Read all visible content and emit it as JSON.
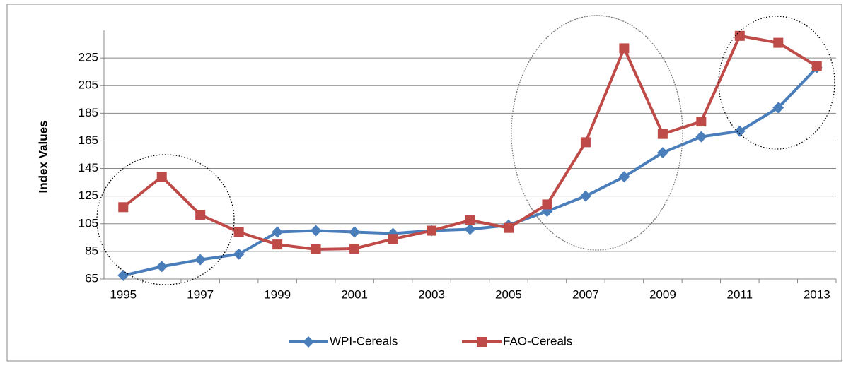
{
  "chart_data": {
    "type": "line",
    "y_label": "Index Values",
    "x": [
      1995,
      1996,
      1997,
      1998,
      1999,
      2000,
      2001,
      2002,
      2003,
      2004,
      2005,
      2006,
      2007,
      2008,
      2009,
      2010,
      2011,
      2012,
      2013
    ],
    "xlim": [
      1994.5,
      2013.5
    ],
    "xticks": [
      1995,
      1997,
      1999,
      2001,
      2003,
      2005,
      2007,
      2009,
      2011,
      2013
    ],
    "ylim": [
      65,
      245
    ],
    "yticks": [
      65,
      85,
      105,
      125,
      145,
      165,
      185,
      205,
      225
    ],
    "grid": true,
    "legend": "bottom",
    "series": [
      {
        "name": "WPI-Cereals",
        "color": "#4a7ebb",
        "marker": "diamond",
        "values": [
          67.6,
          74,
          79,
          83,
          99,
          100,
          99,
          98,
          100,
          101,
          104,
          114,
          125,
          139,
          156.5,
          168,
          172,
          189,
          218
        ]
      },
      {
        "name": "FAO-Cereals",
        "color": "#be4b48",
        "marker": "square",
        "values": [
          117,
          139,
          111.5,
          99,
          90,
          86.5,
          87,
          94,
          100,
          107.5,
          102,
          119,
          164,
          232,
          170,
          179,
          241,
          236,
          219
        ]
      }
    ]
  }
}
